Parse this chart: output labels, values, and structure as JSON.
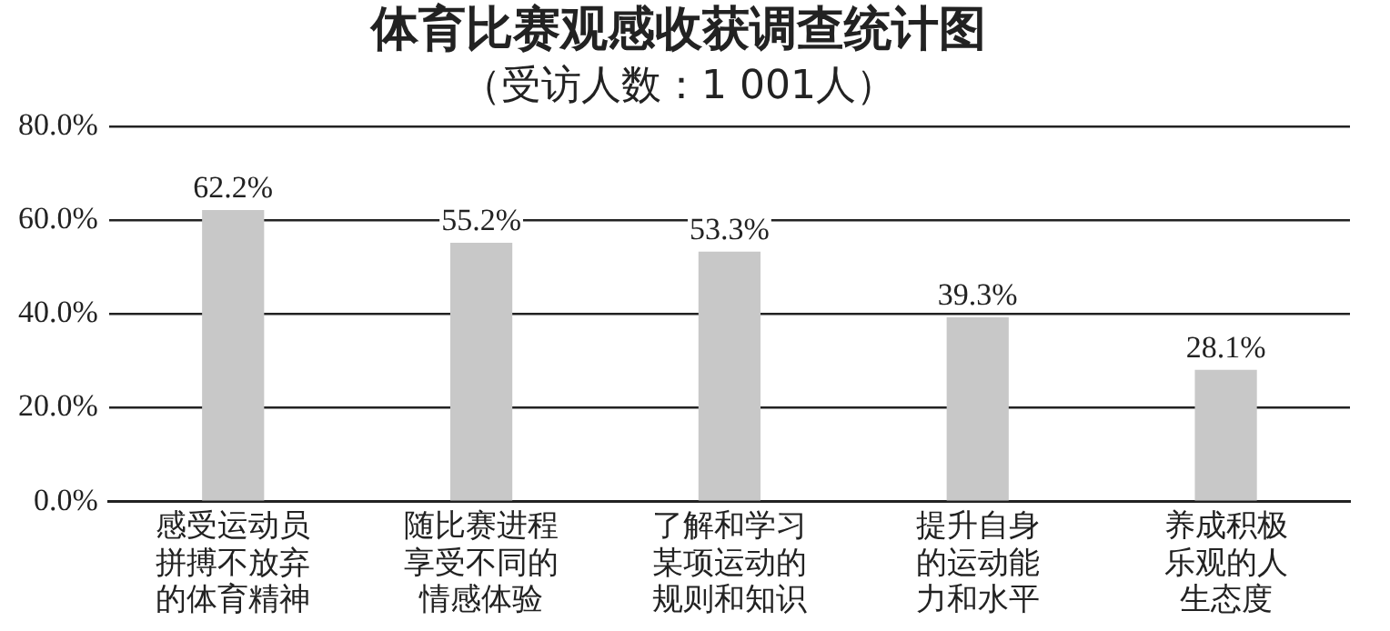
{
  "chart_data": {
    "type": "bar",
    "title": "体育比赛观感收获调查统计图",
    "subtitle": "（受访人数：1 001人）",
    "categories": [
      "感受运动员拼搏不放弃的体育精神",
      "随比赛进程享受不同的情感体验",
      "了解和学习某项运动的规则和知识",
      "提升自身的运动能力和水平",
      "养成积极乐观的人生态度"
    ],
    "values": [
      62.2,
      55.2,
      53.3,
      39.3,
      28.1
    ],
    "value_labels": [
      "62.2%",
      "55.2%",
      "53.3%",
      "39.3%",
      "28.1%"
    ],
    "color": "#c8c8c8",
    "ylim": [
      0,
      80
    ],
    "yticks": [
      {
        "value": 0,
        "label": "0.0%"
      },
      {
        "value": 20,
        "label": "20.0%"
      },
      {
        "value": 40,
        "label": "40.0%"
      },
      {
        "value": 60,
        "label": "60.0%"
      },
      {
        "value": 80,
        "label": "80.0%"
      }
    ],
    "grid": "y",
    "legend": false
  }
}
